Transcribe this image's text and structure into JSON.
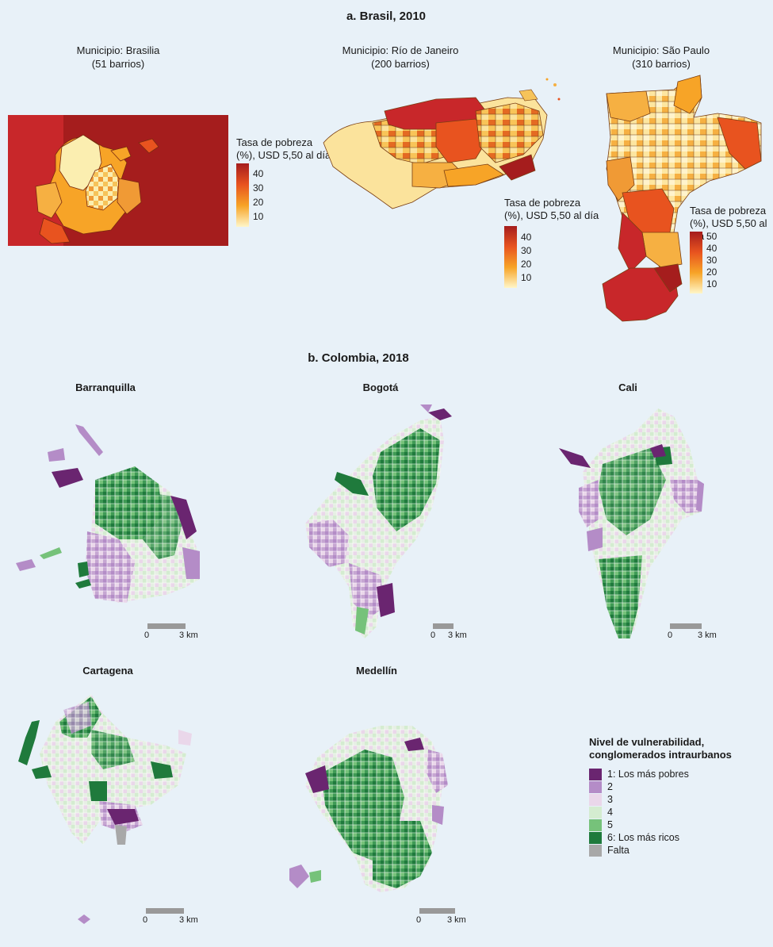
{
  "panel_a": {
    "title": "a. Brasil, 2010",
    "maps": [
      {
        "municipio": "Municipio: Brasilia",
        "barrios": "(51 barrios)"
      },
      {
        "municipio": "Municipio: Río de Janeiro",
        "barrios": "(200 barrios)"
      },
      {
        "municipio": "Municipio: São Paulo",
        "barrios": "(310 barrios)"
      }
    ],
    "legend_title_1": "Tasa de pobreza",
    "legend_title_2": "(%), USD 5,50 al día",
    "ticks_40": [
      "40",
      "30",
      "20",
      "10"
    ],
    "ticks_50": [
      "50",
      "40",
      "30",
      "20",
      "10"
    ],
    "colors": {
      "high": "#a51d1d",
      "mid": "#e8531f",
      "midlow": "#f7a427",
      "low": "#fff6c8"
    }
  },
  "panel_b": {
    "title": "b. Colombia, 2018",
    "cities": [
      "Barranquilla",
      "Bogotá",
      "Cali",
      "Cartagena",
      "Medellín"
    ],
    "scale": {
      "zero": "0",
      "km": "3 km"
    },
    "legend": {
      "title_1": "Nivel de vulnerabilidad,",
      "title_2": "conglomerados intraurbanos",
      "items": [
        {
          "label": "1: Los más pobres",
          "color": "#6a2570"
        },
        {
          "label": "2",
          "color": "#b48cc7"
        },
        {
          "label": "3",
          "color": "#ead7ea"
        },
        {
          "label": "4",
          "color": "#d4ecd0"
        },
        {
          "label": "5",
          "color": "#76c27a"
        },
        {
          "label": "6: Los más ricos",
          "color": "#1f7a3c"
        },
        {
          "label": "Falta",
          "color": "#a8a8a8"
        }
      ]
    }
  }
}
